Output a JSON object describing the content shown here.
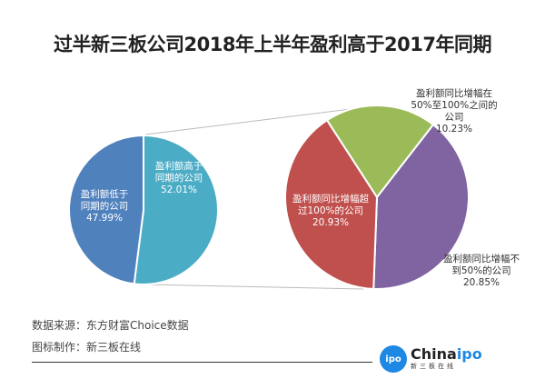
{
  "chart_data": {
    "type": "pie",
    "title": "过半新三板公司2018年上半年盈利高于2017年同期",
    "primary": {
      "slices": [
        {
          "label_lines": [
            "盈利额低于",
            "同期的公司"
          ],
          "value": 47.99,
          "value_label": "47.99%",
          "color": "#4f81bd"
        },
        {
          "label_lines": [
            "盈利额高于",
            "同期的公司"
          ],
          "value": 52.01,
          "value_label": "52.01%",
          "color": "#4bacc6"
        }
      ]
    },
    "secondary": {
      "slices": [
        {
          "label_lines": [
            "盈利额同比增幅在",
            "50%至100%之间的",
            "公司"
          ],
          "value": 10.23,
          "value_label": "10.23%",
          "color": "#9bbb59"
        },
        {
          "label_lines": [
            "盈利额同比增幅不",
            "到50%的公司"
          ],
          "value": 20.85,
          "value_label": "20.85%",
          "color": "#8064a2"
        },
        {
          "label_lines": [
            "盈利额同比增幅超",
            "过100%的公司"
          ],
          "value": 20.93,
          "value_label": "20.93%",
          "color": "#c0504d"
        }
      ]
    }
  },
  "footer": {
    "source": "数据来源：东方财富Choice数据",
    "maker": "图标制作：新三板在线",
    "logo_badge": "ipo",
    "logo_brand_a": "China",
    "logo_brand_b": "ipo",
    "logo_sub": "新三板在线"
  }
}
